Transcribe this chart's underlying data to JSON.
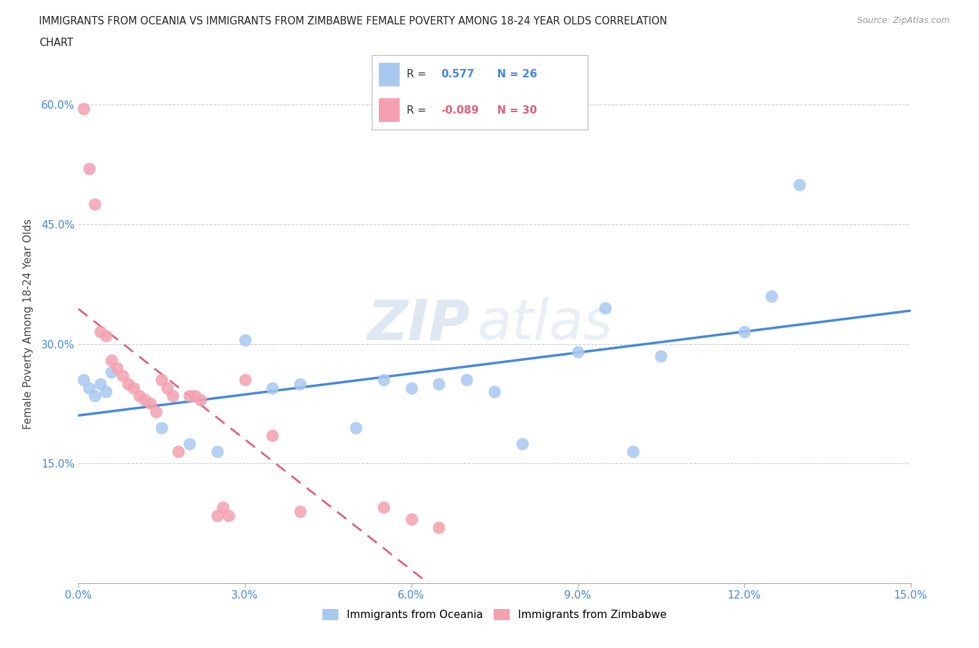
{
  "title_line1": "IMMIGRANTS FROM OCEANIA VS IMMIGRANTS FROM ZIMBABWE FEMALE POVERTY AMONG 18-24 YEAR OLDS CORRELATION",
  "title_line2": "CHART",
  "source": "Source: ZipAtlas.com",
  "ylabel": "Female Poverty Among 18-24 Year Olds",
  "xlim": [
    0.0,
    0.15
  ],
  "ylim": [
    0.0,
    0.65
  ],
  "xticks": [
    0.0,
    0.03,
    0.06,
    0.09,
    0.12,
    0.15
  ],
  "yticks": [
    0.15,
    0.3,
    0.45,
    0.6
  ],
  "ytick_labels": [
    "15.0%",
    "30.0%",
    "45.0%",
    "60.0%"
  ],
  "xtick_labels": [
    "0.0%",
    "3.0%",
    "6.0%",
    "9.0%",
    "12.0%",
    "15.0%"
  ],
  "color_oceania": "#a8c8f0",
  "color_zimbabwe": "#f4a0b0",
  "line_color_oceania": "#4488dd",
  "line_color_zimbabwe": "#e0607a",
  "R_oceania": 0.577,
  "N_oceania": 26,
  "R_zimbabwe": -0.089,
  "N_zimbabwe": 30,
  "oceania_x": [
    0.001,
    0.002,
    0.003,
    0.004,
    0.005,
    0.006,
    0.015,
    0.02,
    0.025,
    0.03,
    0.035,
    0.04,
    0.05,
    0.055,
    0.06,
    0.065,
    0.07,
    0.075,
    0.08,
    0.09,
    0.095,
    0.1,
    0.105,
    0.12,
    0.125,
    0.13
  ],
  "oceania_y": [
    0.255,
    0.245,
    0.235,
    0.25,
    0.24,
    0.265,
    0.195,
    0.175,
    0.165,
    0.305,
    0.245,
    0.25,
    0.195,
    0.255,
    0.245,
    0.25,
    0.255,
    0.24,
    0.175,
    0.29,
    0.345,
    0.165,
    0.285,
    0.315,
    0.36,
    0.5
  ],
  "zimbabwe_x": [
    0.001,
    0.002,
    0.003,
    0.004,
    0.005,
    0.006,
    0.007,
    0.008,
    0.009,
    0.01,
    0.011,
    0.012,
    0.013,
    0.014,
    0.015,
    0.016,
    0.017,
    0.018,
    0.02,
    0.021,
    0.022,
    0.025,
    0.026,
    0.027,
    0.03,
    0.035,
    0.04,
    0.055,
    0.06,
    0.065
  ],
  "zimbabwe_y": [
    0.595,
    0.52,
    0.475,
    0.315,
    0.31,
    0.28,
    0.27,
    0.26,
    0.25,
    0.245,
    0.235,
    0.23,
    0.225,
    0.215,
    0.255,
    0.245,
    0.235,
    0.165,
    0.235,
    0.235,
    0.23,
    0.085,
    0.095,
    0.085,
    0.255,
    0.185,
    0.09,
    0.095,
    0.08,
    0.07
  ],
  "watermark_zip": "ZIP",
  "watermark_atlas": "atlas",
  "background_color": "#ffffff",
  "grid_color": "#cccccc",
  "legend_label_oceania": "Immigrants from Oceania",
  "legend_label_zimbabwe": "Immigrants from Zimbabwe"
}
